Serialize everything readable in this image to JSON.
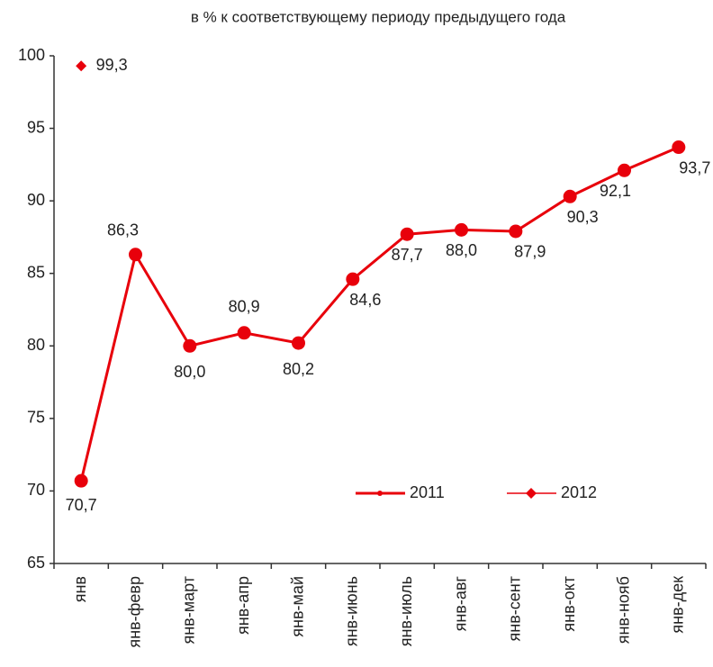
{
  "chart_data": {
    "type": "line",
    "title": "в % к соответствующему периоду предыдущего года",
    "categories": [
      "янв",
      "янв-февр",
      "янв-март",
      "янв-апр",
      "янв-май",
      "янв-июнь",
      "янв-июль",
      "янв-авг",
      "янв-сент",
      "янв-окт",
      "янв-нояб",
      "янв-дек"
    ],
    "series": [
      {
        "name": "2011",
        "color": "#e8000b",
        "marker": "circle",
        "values": [
          70.7,
          86.3,
          80.0,
          80.9,
          80.2,
          84.6,
          87.7,
          88.0,
          87.9,
          90.3,
          92.1,
          93.7
        ],
        "value_labels": [
          "70,7",
          "86,3",
          "80,0",
          "80,9",
          "80,2",
          "84,6",
          "87,7",
          "88,0",
          "87,9",
          "90,3",
          "92,1",
          "93,7"
        ]
      },
      {
        "name": "2012",
        "color": "#e8000b",
        "marker": "diamond",
        "values": [
          99.3,
          null,
          null,
          null,
          null,
          null,
          null,
          null,
          null,
          null,
          null,
          null
        ],
        "value_labels": [
          "99,3",
          null,
          null,
          null,
          null,
          null,
          null,
          null,
          null,
          null,
          null,
          null
        ]
      }
    ],
    "ylim": [
      65,
      100
    ],
    "yticks": [
      65,
      70,
      75,
      80,
      85,
      90,
      95,
      100
    ],
    "grid": false
  }
}
